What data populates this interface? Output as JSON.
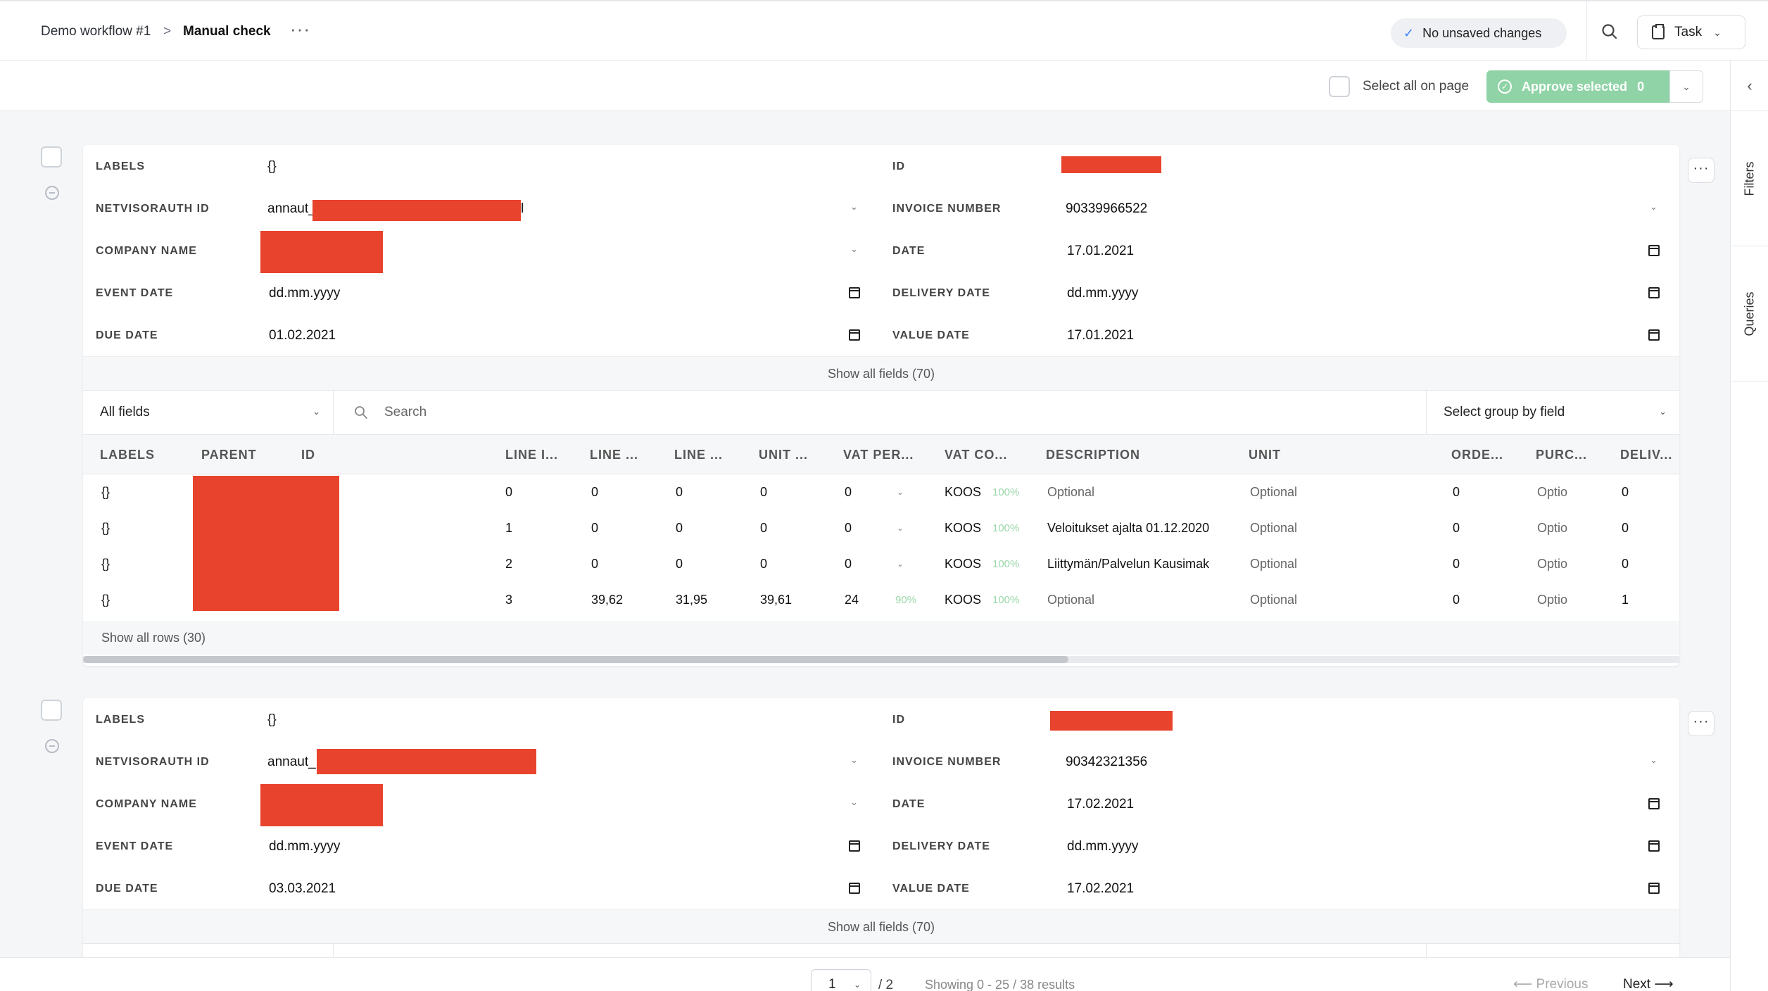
{
  "breadcrumb": {
    "workflow": "Demo workflow #1",
    "separator": ">",
    "current": "Manual check",
    "more": "···"
  },
  "header": {
    "saved_status": "No unsaved changes",
    "task_label": "Task"
  },
  "actions": {
    "select_all_label": "Select all on page",
    "approve_label": "Approve selected",
    "approve_count": "0"
  },
  "right_rail": {
    "filters": "Filters",
    "queries": "Queries"
  },
  "records": [
    {
      "fields_left": [
        {
          "label": "LABELS",
          "value": "{}"
        },
        {
          "label": "NETVISORAUTH ID",
          "value": "annaut_",
          "value_tail": "l"
        },
        {
          "label": "COMPANY NAME",
          "value": ""
        },
        {
          "label": "EVENT DATE",
          "value": "dd.mm.yyyy"
        },
        {
          "label": "DUE DATE",
          "value": "01.02.2021"
        }
      ],
      "fields_right": [
        {
          "label": "ID",
          "value": ""
        },
        {
          "label": "INVOICE NUMBER",
          "value": "90339966522"
        },
        {
          "label": "DATE",
          "value": "17.01.2021"
        },
        {
          "label": "DELIVERY DATE",
          "value": "dd.mm.yyyy"
        },
        {
          "label": "VALUE DATE",
          "value": "17.01.2021"
        }
      ],
      "show_all_fields": "Show all fields (70)",
      "all_fields_select": "All fields",
      "search_placeholder": "Search",
      "group_by_placeholder": "Select group by field",
      "columns": [
        "LABELS",
        "PARENT",
        "ID",
        "LINE I...",
        "LINE ...",
        "LINE ...",
        "UNIT ...",
        "VAT PER...",
        "VAT CO...",
        "DESCRIPTION",
        "UNIT",
        "ORDE...",
        "PURC...",
        "DELIV..."
      ],
      "rows": [
        {
          "labels": "{}",
          "parent": "",
          "id": "",
          "line1": "0",
          "line2": "0",
          "line3": "0",
          "unit_price": "0",
          "vat_percent": "0",
          "vat_code": "KOOS",
          "vat_conf": "100%",
          "description": "Optional",
          "unit": "Optional",
          "order": "0",
          "purchase": "Optio",
          "delivery": "0"
        },
        {
          "labels": "{}",
          "parent": "",
          "id": "",
          "line1": "1",
          "line2": "0",
          "line3": "0",
          "unit_price": "0",
          "vat_percent": "0",
          "vat_code": "KOOS",
          "vat_conf": "100%",
          "description": "Veloitukset ajalta 01.12.2020",
          "unit": "Optional",
          "order": "0",
          "purchase": "Optio",
          "delivery": "0"
        },
        {
          "labels": "{}",
          "parent": "",
          "id": "",
          "line1": "2",
          "line2": "0",
          "line3": "0",
          "unit_price": "0",
          "vat_percent": "0",
          "vat_code": "KOOS",
          "vat_conf": "100%",
          "description": "Liittymän/Palvelun Kausimak",
          "unit": "Optional",
          "order": "0",
          "purchase": "Optio",
          "delivery": "0"
        },
        {
          "labels": "{}",
          "parent": "",
          "id": "",
          "line1": "3",
          "line2": "39,62",
          "line3": "31,95",
          "unit_price": "39,61",
          "vat_percent": "24",
          "vat_percent_conf": "90%",
          "vat_code": "KOOS",
          "vat_conf": "100%",
          "description": "Optional",
          "unit": "Optional",
          "order": "0",
          "purchase": "Optio",
          "delivery": "1"
        }
      ],
      "show_all_rows": "Show all rows (30)"
    },
    {
      "fields_left": [
        {
          "label": "LABELS",
          "value": "{}"
        },
        {
          "label": "NETVISORAUTH ID",
          "value": "annaut_"
        },
        {
          "label": "COMPANY NAME",
          "value": ""
        },
        {
          "label": "EVENT DATE",
          "value": "dd.mm.yyyy"
        },
        {
          "label": "DUE DATE",
          "value": "03.03.2021"
        }
      ],
      "fields_right": [
        {
          "label": "ID",
          "value": ""
        },
        {
          "label": "INVOICE NUMBER",
          "value": "90342321356"
        },
        {
          "label": "DATE",
          "value": "17.02.2021"
        },
        {
          "label": "DELIVERY DATE",
          "value": "dd.mm.yyyy"
        },
        {
          "label": "VALUE DATE",
          "value": "17.02.2021"
        }
      ],
      "show_all_fields": "Show all fields (70)"
    }
  ],
  "pagination": {
    "page": "1",
    "total": "/ 2",
    "showing": "Showing 0 - 25 / 38 results",
    "previous": "Previous",
    "next": "Next"
  },
  "colors": {
    "redaction": "#e8432d",
    "approve_bg": "#8fd3a6",
    "accent": "#3b82f6"
  }
}
